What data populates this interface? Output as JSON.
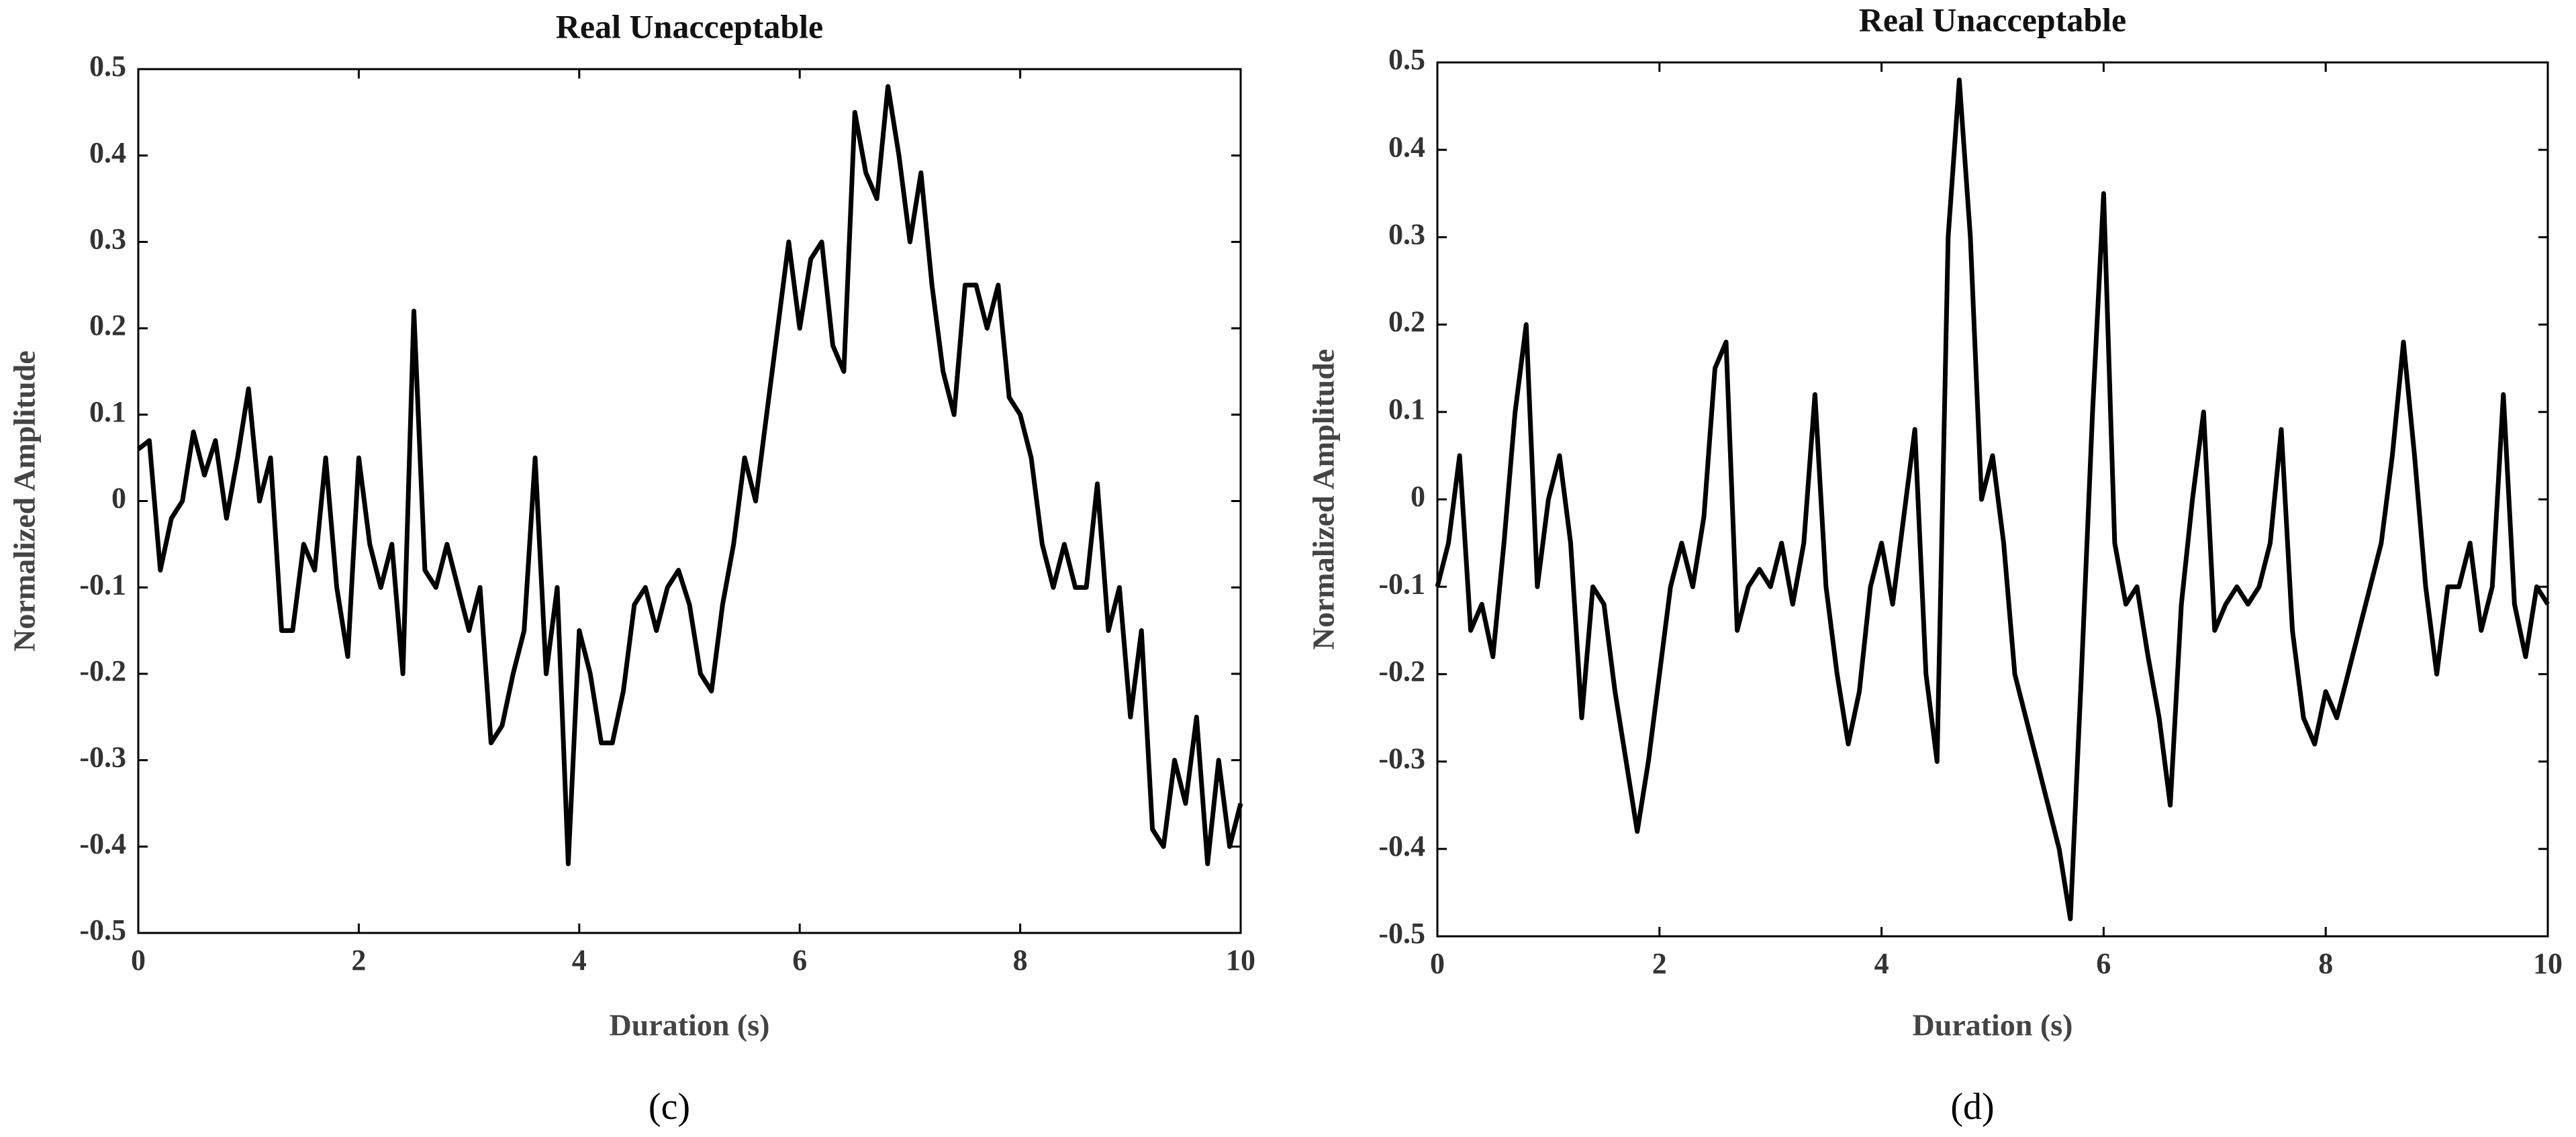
{
  "chart_data": [
    {
      "type": "line",
      "title": "Real Unacceptable",
      "x_label": "Duration (s)",
      "y_label": "Normalized Amplitude",
      "caption": "(c)",
      "xlim": [
        0,
        10
      ],
      "ylim": [
        -0.5,
        0.5
      ],
      "xticks": [
        0,
        2,
        4,
        6,
        8,
        10
      ],
      "yticks": [
        -0.5,
        -0.4,
        -0.3,
        -0.2,
        -0.1,
        0,
        0.1,
        0.2,
        0.3,
        0.4,
        0.5
      ],
      "x": [
        0,
        0.1,
        0.2,
        0.3,
        0.4,
        0.5,
        0.6,
        0.7,
        0.8,
        0.9,
        1,
        1.1,
        1.2,
        1.3,
        1.4,
        1.5,
        1.6,
        1.7,
        1.8,
        1.9,
        2,
        2.1,
        2.2,
        2.3,
        2.4,
        2.5,
        2.6,
        2.7,
        2.8,
        2.9,
        3,
        3.1,
        3.2,
        3.3,
        3.4,
        3.5,
        3.6,
        3.7,
        3.8,
        3.9,
        4,
        4.1,
        4.2,
        4.3,
        4.4,
        4.5,
        4.6,
        4.7,
        4.8,
        4.9,
        5,
        5.1,
        5.2,
        5.3,
        5.4,
        5.5,
        5.6,
        5.7,
        5.8,
        5.9,
        6,
        6.1,
        6.2,
        6.3,
        6.4,
        6.5,
        6.6,
        6.7,
        6.8,
        6.9,
        7,
        7.1,
        7.2,
        7.3,
        7.4,
        7.5,
        7.6,
        7.7,
        7.8,
        7.9,
        8,
        8.1,
        8.2,
        8.3,
        8.4,
        8.5,
        8.6,
        8.7,
        8.8,
        8.9,
        9,
        9.1,
        9.2,
        9.3,
        9.4,
        9.5,
        9.6,
        9.7,
        9.8,
        9.9,
        10
      ],
      "series": [
        {
          "color": "#000000",
          "values": [
            0.06,
            0.07,
            -0.08,
            -0.02,
            0,
            0.08,
            0.03,
            0.07,
            -0.02,
            0.05,
            0.13,
            0,
            0.05,
            -0.15,
            -0.15,
            -0.05,
            -0.08,
            0.05,
            -0.1,
            -0.18,
            0.05,
            -0.05,
            -0.1,
            -0.05,
            -0.2,
            0.22,
            -0.08,
            -0.1,
            -0.05,
            -0.1,
            -0.15,
            -0.1,
            -0.28,
            -0.26,
            -0.2,
            -0.15,
            0.05,
            -0.2,
            -0.1,
            -0.42,
            -0.15,
            -0.2,
            -0.28,
            -0.28,
            -0.22,
            -0.12,
            -0.1,
            -0.15,
            -0.1,
            -0.08,
            -0.12,
            -0.2,
            -0.22,
            -0.12,
            -0.05,
            0.05,
            0,
            0.1,
            0.2,
            0.3,
            0.2,
            0.28,
            0.3,
            0.18,
            0.15,
            0.45,
            0.38,
            0.35,
            0.48,
            0.4,
            0.3,
            0.38,
            0.25,
            0.15,
            0.1,
            0.25,
            0.25,
            0.2,
            0.25,
            0.12,
            0.1,
            0.05,
            -0.05,
            -0.1,
            -0.05,
            -0.1,
            -0.1,
            0.02,
            -0.15,
            -0.1,
            -0.25,
            -0.15,
            -0.38,
            -0.4,
            -0.3,
            -0.35,
            -0.25,
            -0.42,
            -0.3,
            -0.4,
            -0.35
          ]
        }
      ]
    },
    {
      "type": "line",
      "title": "Real Unacceptable",
      "x_label": "Duration (s)",
      "y_label": "Normalized Amplitude",
      "caption": "(d)",
      "xlim": [
        0,
        10
      ],
      "ylim": [
        -0.5,
        0.5
      ],
      "xticks": [
        0,
        2,
        4,
        6,
        8,
        10
      ],
      "yticks": [
        -0.5,
        -0.4,
        -0.3,
        -0.2,
        -0.1,
        0,
        0.1,
        0.2,
        0.3,
        0.4,
        0.5
      ],
      "x": [
        0,
        0.1,
        0.2,
        0.3,
        0.4,
        0.5,
        0.6,
        0.7,
        0.8,
        0.9,
        1,
        1.1,
        1.2,
        1.3,
        1.4,
        1.5,
        1.6,
        1.7,
        1.8,
        1.9,
        2,
        2.1,
        2.2,
        2.3,
        2.4,
        2.5,
        2.6,
        2.7,
        2.8,
        2.9,
        3,
        3.1,
        3.2,
        3.3,
        3.4,
        3.5,
        3.6,
        3.7,
        3.8,
        3.9,
        4,
        4.1,
        4.2,
        4.3,
        4.4,
        4.5,
        4.6,
        4.7,
        4.8,
        4.9,
        5,
        5.1,
        5.2,
        5.3,
        5.4,
        5.5,
        5.6,
        5.7,
        5.8,
        5.9,
        6,
        6.1,
        6.2,
        6.3,
        6.4,
        6.5,
        6.6,
        6.7,
        6.8,
        6.9,
        7,
        7.1,
        7.2,
        7.3,
        7.4,
        7.5,
        7.6,
        7.7,
        7.8,
        7.9,
        8,
        8.1,
        8.2,
        8.3,
        8.4,
        8.5,
        8.6,
        8.7,
        8.8,
        8.9,
        9,
        9.1,
        9.2,
        9.3,
        9.4,
        9.5,
        9.6,
        9.7,
        9.8,
        9.9,
        10
      ],
      "series": [
        {
          "color": "#000000",
          "values": [
            -0.1,
            -0.05,
            0.05,
            -0.15,
            -0.12,
            -0.18,
            -0.05,
            0.1,
            0.2,
            -0.1,
            0,
            0.05,
            -0.05,
            -0.25,
            -0.1,
            -0.12,
            -0.22,
            -0.3,
            -0.38,
            -0.3,
            -0.2,
            -0.1,
            -0.05,
            -0.1,
            -0.02,
            0.15,
            0.18,
            -0.15,
            -0.1,
            -0.08,
            -0.1,
            -0.05,
            -0.12,
            -0.05,
            0.12,
            -0.1,
            -0.2,
            -0.28,
            -0.22,
            -0.1,
            -0.05,
            -0.12,
            -0.02,
            0.08,
            -0.2,
            -0.3,
            0.3,
            0.48,
            0.3,
            0,
            0.05,
            -0.05,
            -0.2,
            -0.25,
            -0.3,
            -0.35,
            -0.4,
            -0.48,
            -0.2,
            0.1,
            0.35,
            -0.05,
            -0.12,
            -0.1,
            -0.18,
            -0.25,
            -0.35,
            -0.12,
            0,
            0.1,
            -0.15,
            -0.12,
            -0.1,
            -0.12,
            -0.1,
            -0.05,
            0.08,
            -0.15,
            -0.25,
            -0.28,
            -0.22,
            -0.25,
            -0.2,
            -0.15,
            -0.1,
            -0.05,
            0.05,
            0.18,
            0.05,
            -0.1,
            -0.2,
            -0.1,
            -0.1,
            -0.05,
            -0.15,
            -0.1,
            0.12,
            -0.12,
            -0.18,
            -0.1,
            -0.12
          ]
        }
      ]
    }
  ]
}
